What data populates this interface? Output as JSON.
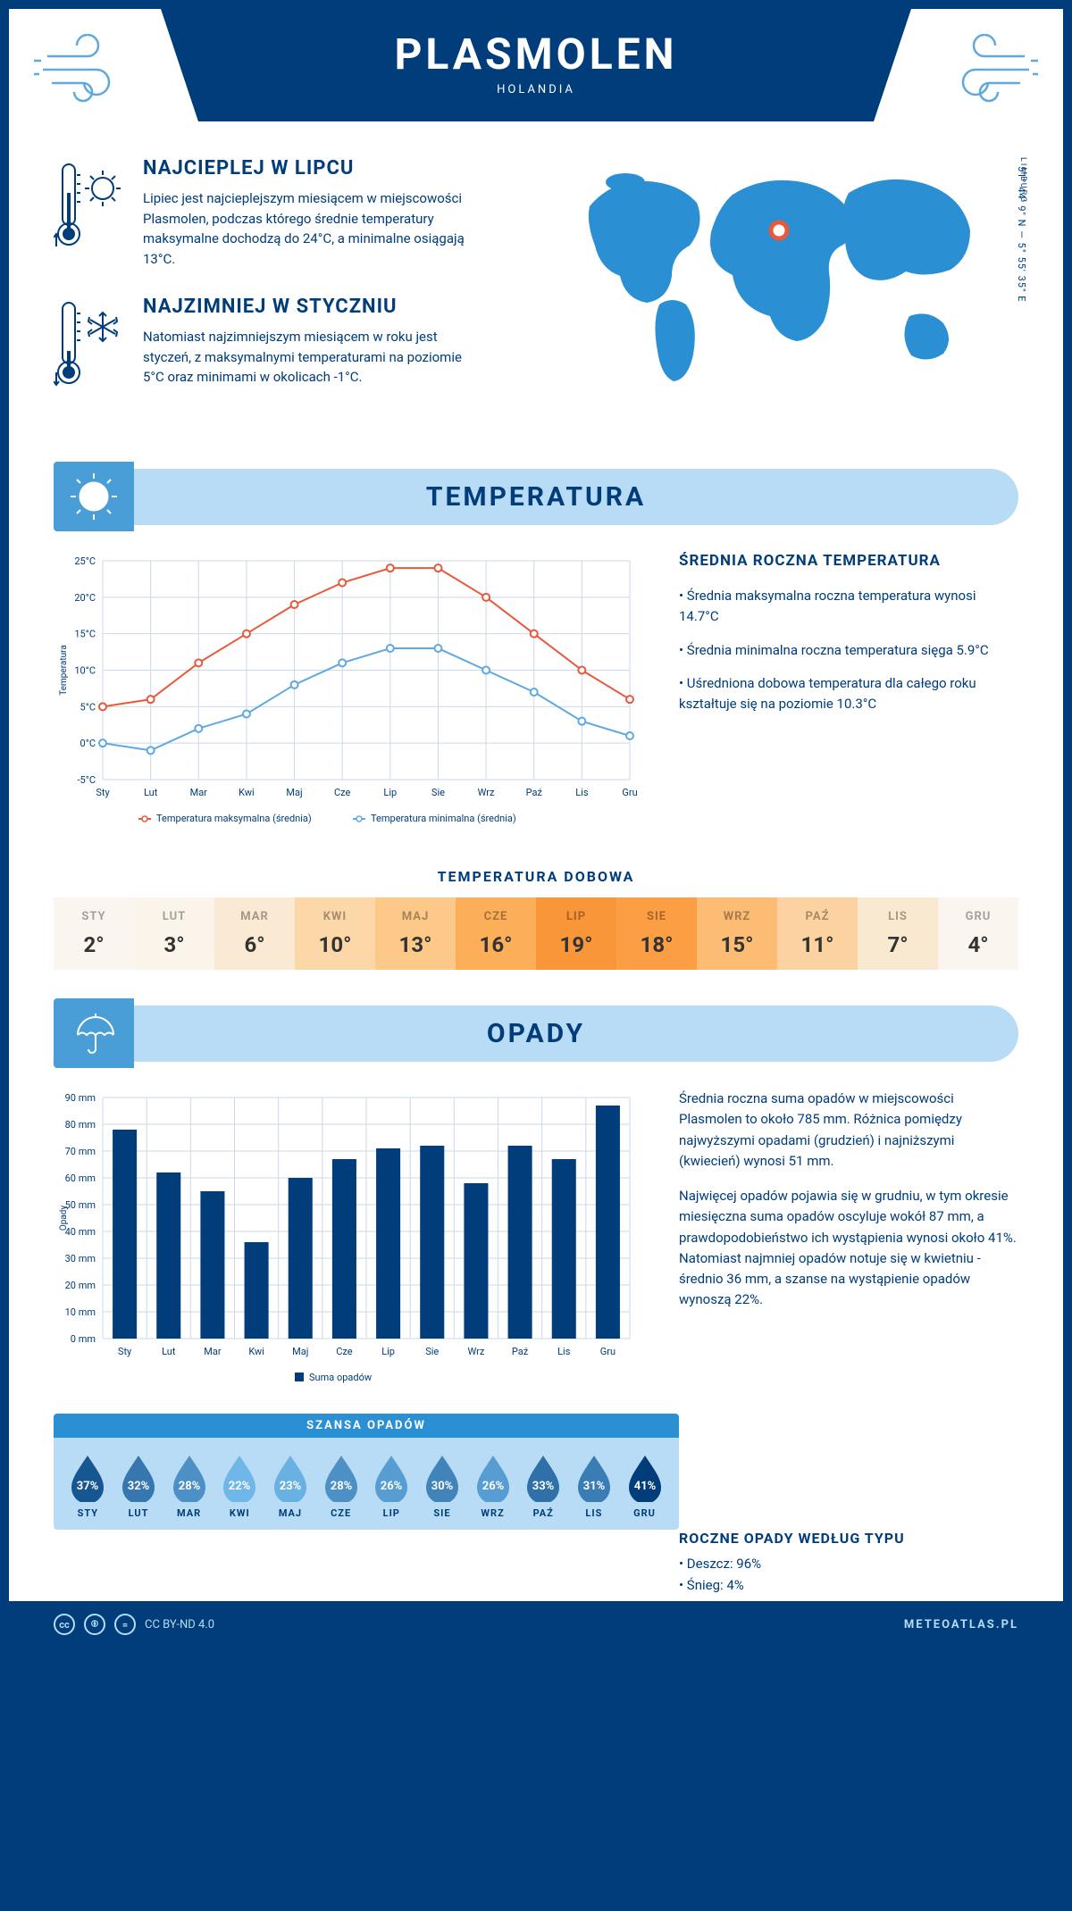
{
  "header": {
    "title": "PLASMOLEN",
    "country": "HOLANDIA"
  },
  "coords": "51° 44' 9\" N — 5° 55' 35\" E",
  "region": "LIMBURG",
  "warmest": {
    "title": "NAJCIEPLEJ W LIPCU",
    "text": "Lipiec jest najcieplejszym miesiącem w miejscowości Plasmolen, podczas którego średnie temperatury maksymalne dochodzą do 24°C, a minimalne osiągają 13°C."
  },
  "coldest": {
    "title": "NAJZIMNIEJ W STYCZNIU",
    "text": "Natomiast najzimniejszym miesiącem w roku jest styczeń, z maksymalnymi temperaturami na poziomie 5°C oraz minimami w okolicach -1°C."
  },
  "temp_section": {
    "title": "TEMPERATURA"
  },
  "temp_chart": {
    "months": [
      "Sty",
      "Lut",
      "Mar",
      "Kwi",
      "Maj",
      "Cze",
      "Lip",
      "Sie",
      "Wrz",
      "Paź",
      "Lis",
      "Gru"
    ],
    "max_series": [
      5,
      6,
      11,
      15,
      19,
      22,
      24,
      24,
      20,
      15,
      10,
      6
    ],
    "min_series": [
      0,
      -1,
      2,
      4,
      8,
      11,
      13,
      13,
      10,
      7,
      3,
      1
    ],
    "ylim": [
      -5,
      25
    ],
    "ytick_step": 5,
    "max_color": "#e8593b",
    "min_color": "#5fa9e0",
    "grid_color": "#ccd9e8",
    "ylabel": "Temperatura",
    "legend_max": "Temperatura maksymalna (średnia)",
    "legend_min": "Temperatura minimalna (średnia)"
  },
  "temp_info": {
    "title": "ŚREDNIA ROCZNA TEMPERATURA",
    "b1": "• Średnia maksymalna roczna temperatura wynosi 14.7°C",
    "b2": "• Średnia minimalna roczna temperatura sięga 5.9°C",
    "b3": "• Uśredniona dobowa temperatura dla całego roku kształtuje się na poziomie 10.3°C"
  },
  "daily": {
    "title": "TEMPERATURA DOBOWA",
    "months": [
      "STY",
      "LUT",
      "MAR",
      "KWI",
      "MAJ",
      "CZE",
      "LIP",
      "SIE",
      "WRZ",
      "PAŹ",
      "LIS",
      "GRU"
    ],
    "values": [
      "2°",
      "3°",
      "6°",
      "10°",
      "13°",
      "16°",
      "19°",
      "18°",
      "15°",
      "11°",
      "7°",
      "4°"
    ],
    "colors": [
      "#faf5ee",
      "#faf4eb",
      "#fae9d3",
      "#fcd7a8",
      "#fcc988",
      "#fcae58",
      "#fa963a",
      "#fb9e44",
      "#fcbc74",
      "#fcd3a0",
      "#fae9d1",
      "#faf5ee"
    ]
  },
  "precip_section": {
    "title": "OPADY"
  },
  "precip_chart": {
    "months": [
      "Sty",
      "Lut",
      "Mar",
      "Kwi",
      "Maj",
      "Cze",
      "Lip",
      "Sie",
      "Wrz",
      "Paź",
      "Lis",
      "Gru"
    ],
    "values": [
      78,
      62,
      55,
      36,
      60,
      67,
      71,
      72,
      58,
      72,
      67,
      87
    ],
    "ylim": [
      0,
      90
    ],
    "ytick_step": 10,
    "bar_color": "#003d7a",
    "grid_color": "#ccd9e8",
    "ylabel": "Opady",
    "legend": "Suma opadów"
  },
  "precip_info": {
    "p1": "Średnia roczna suma opadów w miejscowości Plasmolen to około 785 mm. Różnica pomiędzy najwyższymi opadami (grudzień) i najniższymi (kwiecień) wynosi 51 mm.",
    "p2": "Najwięcej opadów pojawia się w grudniu, w tym okresie miesięczna suma opadów oscyluje wokół 87 mm, a prawdopodobieństwo ich wystąpienia wynosi około 41%. Natomiast najmniej opadów notuje się w kwietniu - średnio 36 mm, a szanse na wystąpienie opadów wynoszą 22%."
  },
  "chance": {
    "title": "SZANSA OPADÓW",
    "months": [
      "STY",
      "LUT",
      "MAR",
      "KWI",
      "MAJ",
      "CZE",
      "LIP",
      "SIE",
      "WRZ",
      "PAŹ",
      "LIS",
      "GRU"
    ],
    "pct": [
      37,
      32,
      28,
      22,
      23,
      28,
      26,
      30,
      26,
      33,
      31,
      41
    ],
    "min_color": "#6fb7e8",
    "max_color": "#003d7a"
  },
  "type": {
    "title": "ROCZNE OPADY WEDŁUG TYPU",
    "rain": "• Deszcz: 96%",
    "snow": "• Śnieg: 4%"
  },
  "footer": {
    "license": "CC BY-ND 4.0",
    "site": "METEOATLAS.PL"
  }
}
